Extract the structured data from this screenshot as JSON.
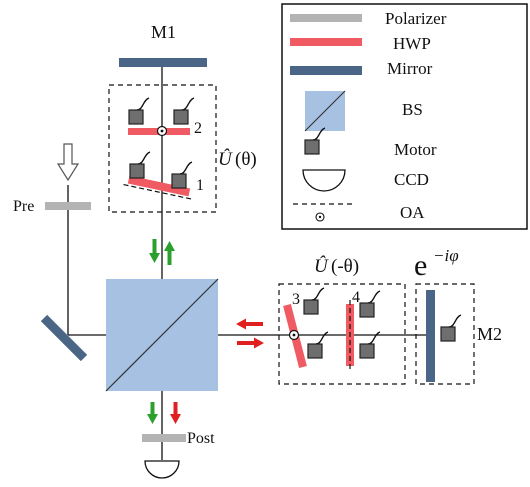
{
  "colors": {
    "polarizer": "#b3b3b3",
    "hwp": "#f05a62",
    "mirror": "#4a6585",
    "bs": "#a7c1e3",
    "motor": "#555555",
    "arrow_green": "#2ca02c",
    "arrow_red": "#e02020"
  },
  "legend": {
    "polarizer": "Polarizer",
    "hwp": "HWP",
    "mirror": "Mirror",
    "bs": "BS",
    "motor": "Motor",
    "ccd": "CCD",
    "oa": "OA"
  },
  "labels": {
    "m1": "M1",
    "m2": "M2",
    "pre": "Pre",
    "post": "Post",
    "wp1": "1",
    "wp2": "2",
    "wp3": "3",
    "wp4": "4",
    "u_hat": "Û",
    "u_theta_arg": "(θ)",
    "u_minus_theta_arg": "(-θ)",
    "phase_base": "e",
    "phase_exp": "−iφ"
  },
  "icons": [
    "arrow-down-hollow-icon",
    "arrow-up-green-icon",
    "arrow-down-green-icon",
    "arrow-left-red-icon",
    "arrow-right-red-icon",
    "arrow-down-red-icon",
    "motor-icon",
    "ccd-icon",
    "oa-icon"
  ]
}
